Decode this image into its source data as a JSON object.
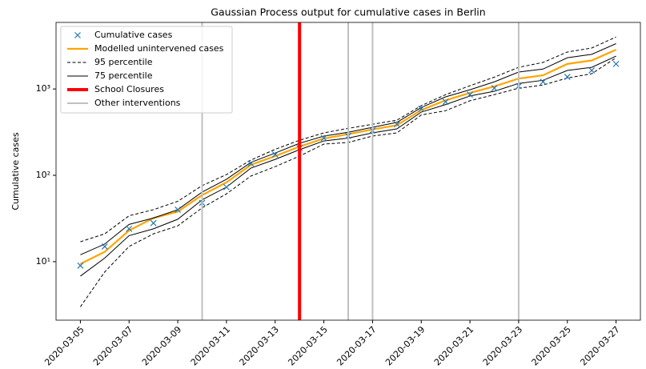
{
  "chart_data": {
    "type": "line",
    "title": "Gaussian Process output for cumulative cases in Berlin",
    "y_label": "Cumulative cases",
    "log_y": true,
    "x": [
      "2020-03-05",
      "2020-03-06",
      "2020-03-07",
      "2020-03-08",
      "2020-03-09",
      "2020-03-10",
      "2020-03-11",
      "2020-03-12",
      "2020-03-13",
      "2020-03-14",
      "2020-03-15",
      "2020-03-16",
      "2020-03-17",
      "2020-03-18",
      "2020-03-19",
      "2020-03-20",
      "2020-03-21",
      "2020-03-22",
      "2020-03-23",
      "2020-03-24",
      "2020-03-25",
      "2020-03-26",
      "2020-03-27"
    ],
    "xlim": [
      "2020-03-04",
      "2020-03-28"
    ],
    "xticks": [
      "2020-03-05",
      "2020-03-07",
      "2020-03-09",
      "2020-03-11",
      "2020-03-13",
      "2020-03-15",
      "2020-03-17",
      "2020-03-19",
      "2020-03-21",
      "2020-03-23",
      "2020-03-25",
      "2020-03-27"
    ],
    "ylim": [
      2.1,
      5900
    ],
    "yticks": [
      {
        "value": 10,
        "label": "10¹"
      },
      {
        "value": 100,
        "label": "10²"
      },
      {
        "value": 1000,
        "label": "10³"
      }
    ],
    "series": [
      {
        "name": "Cumulative cases",
        "color": "#1f77b4",
        "marker": "x",
        "linestyle": "none",
        "values": [
          9,
          15,
          24,
          28,
          40,
          48,
          73,
          137,
          174,
          207,
          270,
          285,
          330,
          390,
          590,
          710,
          860,
          1020,
          1080,
          1210,
          1380,
          1640,
          1950
        ]
      },
      {
        "name": "Modelled unintervened cases",
        "color": "#ffa500",
        "linestyle": "solid",
        "width": 2.2,
        "values": [
          9.4,
          13,
          23,
          32,
          38,
          59,
          83,
          132,
          167,
          215,
          267,
          300,
          340,
          380,
          570,
          740,
          900,
          1070,
          1320,
          1440,
          1950,
          2140,
          2850
        ]
      },
      {
        "name": "95 percentile",
        "color": "#000000",
        "linestyle": "dashed",
        "width": 1,
        "lower": [
          3,
          7.6,
          15,
          21,
          26,
          42,
          61,
          98,
          126,
          167,
          230,
          240,
          285,
          310,
          500,
          560,
          730,
          860,
          1020,
          1110,
          1340,
          1500,
          2300
        ],
        "upper": [
          17,
          21,
          34,
          40,
          50,
          76,
          102,
          150,
          200,
          255,
          310,
          350,
          390,
          435,
          640,
          860,
          1090,
          1370,
          1780,
          2030,
          2680,
          2980,
          4000
        ]
      },
      {
        "name": "75 percentile",
        "color": "#000000",
        "linestyle": "solid",
        "width": 1,
        "lower": [
          6.8,
          11,
          20,
          24,
          31,
          52,
          73,
          121,
          153,
          198,
          250,
          270,
          310,
          345,
          540,
          660,
          830,
          940,
          1160,
          1260,
          1640,
          1780,
          2400
        ],
        "upper": [
          12,
          16,
          27,
          32,
          40,
          64,
          90,
          141,
          181,
          235,
          285,
          315,
          360,
          410,
          610,
          810,
          980,
          1210,
          1570,
          1700,
          2300,
          2520,
          3350
        ]
      }
    ],
    "vlines": [
      {
        "name": "School Closures",
        "color": "#ff0000",
        "width": 4,
        "x": [
          "2020-03-14"
        ]
      },
      {
        "name": "Other interventions",
        "color": "#c0c0c0",
        "width": 2,
        "x": [
          "2020-03-10",
          "2020-03-16",
          "2020-03-17",
          "2020-03-23"
        ]
      }
    ],
    "legend": "upper left"
  }
}
